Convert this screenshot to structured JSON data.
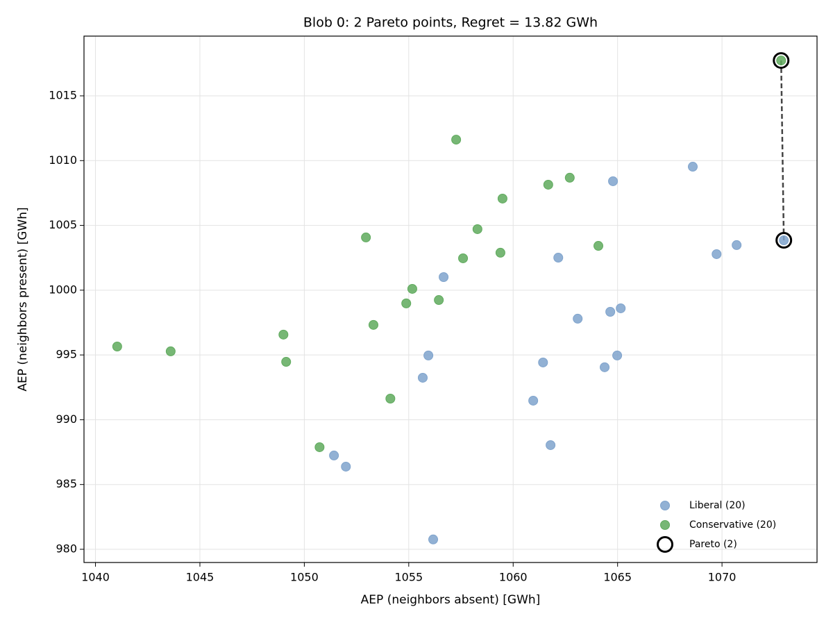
{
  "chart_data": {
    "type": "scatter",
    "title": "Blob 0: 2 Pareto points, Regret = 13.82 GWh",
    "x_label": "AEP (neighbors absent) [GWh]",
    "y_label": "AEP (neighbors present) [GWh]",
    "xlim": [
      1039.45,
      1074.55
    ],
    "ylim": [
      978.98,
      1019.61
    ],
    "xticks": [
      1040,
      1045,
      1050,
      1055,
      1060,
      1065,
      1070
    ],
    "yticks": [
      980,
      985,
      990,
      995,
      1000,
      1005,
      1010,
      1015
    ],
    "grid": true,
    "legend": "lower right",
    "series": [
      {
        "name": "Liberal (20)",
        "color": "#7fa3cc",
        "x": [
          1072.96,
          1068.6,
          1064.78,
          1070.7,
          1069.74,
          1062.16,
          1056.67,
          1065.15,
          1064.65,
          1063.09,
          1055.94,
          1061.43,
          1064.98,
          1064.38,
          1055.67,
          1060.96,
          1061.79,
          1051.42,
          1051.99,
          1056.17
        ],
        "y": [
          1003.85,
          1009.53,
          1008.41,
          1003.48,
          1002.78,
          1002.51,
          1001.01,
          998.6,
          998.33,
          997.8,
          994.96,
          994.42,
          994.96,
          994.05,
          993.24,
          991.47,
          988.04,
          987.24,
          986.38,
          980.76
        ]
      },
      {
        "name": "Conservative (20)",
        "color": "#5faa5d",
        "x": [
          1072.83,
          1057.27,
          1062.71,
          1061.68,
          1059.49,
          1058.29,
          1052.95,
          1064.08,
          1059.39,
          1057.6,
          1055.17,
          1056.44,
          1054.88,
          1053.31,
          1041.04,
          1049.0,
          1043.6,
          1049.13,
          1054.12,
          1050.73
        ],
        "y": [
          1017.73,
          1011.62,
          1008.68,
          1008.14,
          1007.07,
          1004.71,
          1004.07,
          1003.42,
          1002.89,
          1002.46,
          1000.1,
          999.24,
          998.98,
          997.32,
          995.65,
          996.57,
          995.28,
          994.47,
          991.63,
          987.88
        ]
      },
      {
        "name": "Pareto (2)",
        "color": "#000000",
        "marker": "hollow",
        "connect": "dashed",
        "x": [
          1072.83,
          1072.96
        ],
        "y": [
          1017.73,
          1003.85
        ]
      }
    ]
  }
}
